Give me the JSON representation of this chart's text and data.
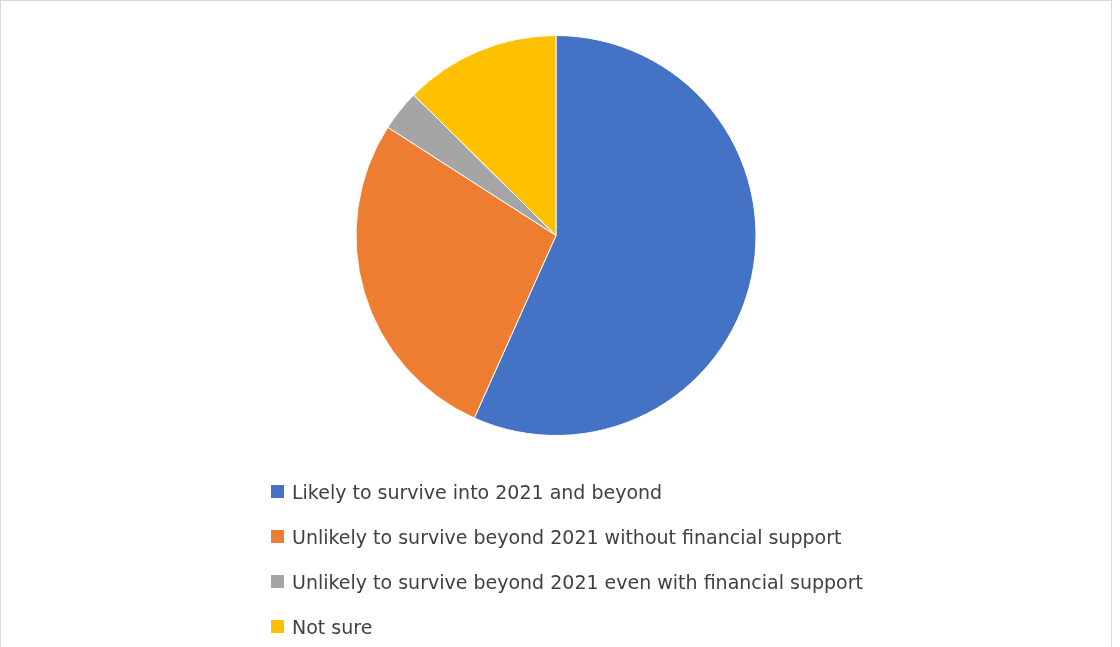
{
  "chart_data": {
    "type": "pie",
    "categories": [
      "Likely to survive into 2021 and beyond",
      "Unlikely to survive beyond 2021 without financial support",
      "Unlikely to survive beyond 2021 even with financial support",
      "Not sure"
    ],
    "values": [
      56.7,
      27.4,
      3.3,
      12.6
    ],
    "colors": [
      "#4472c4",
      "#ed7d31",
      "#a5a5a5",
      "#ffc000"
    ],
    "legend": "bottom"
  }
}
